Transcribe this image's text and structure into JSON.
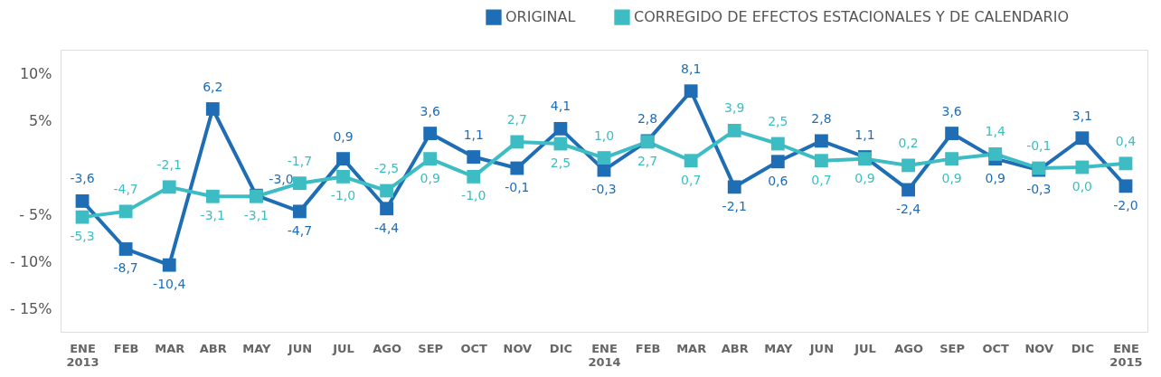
{
  "chart_data": {
    "type": "line",
    "categories": [
      "ENE\n2013",
      "FEB",
      "MAR",
      "ABR",
      "MAY",
      "JUN",
      "JUL",
      "AGO",
      "SEP",
      "OCT",
      "NOV",
      "DIC",
      "ENE\n2014",
      "FEB",
      "MAR",
      "ABR",
      "MAY",
      "JUN",
      "JUL",
      "AGO",
      "SEP",
      "OCT",
      "NOV",
      "DIC",
      "ENE\n2015"
    ],
    "series": [
      {
        "name": "ORIGINAL",
        "color": "#1f6db5",
        "values": [
          -3.6,
          -8.7,
          -10.4,
          6.2,
          -3.0,
          -4.7,
          0.9,
          -4.4,
          3.6,
          1.1,
          -0.1,
          4.1,
          -0.3,
          2.8,
          8.1,
          -2.1,
          0.6,
          2.8,
          1.1,
          -2.4,
          3.6,
          0.9,
          -0.3,
          3.1,
          -2.0
        ],
        "value_labels": [
          "-3,6",
          "-8,7",
          "-10,4",
          "6,2",
          "-3,0",
          "-4,7",
          "0,9",
          "-4,4",
          "3,6",
          "1,1",
          "-0,1",
          "4,1",
          "-0,3",
          "2,8",
          "8,1",
          "-2,1",
          "0,6",
          "2,8",
          "1,1",
          "-2,4",
          "3,6",
          "0,9",
          "-0,3",
          "3,1",
          "-2,0"
        ]
      },
      {
        "name": "CORREGIDO DE EFECTOS ESTACIONALES Y DE CALENDARIO",
        "color": "#3dbdc3",
        "values": [
          -5.3,
          -4.7,
          -2.1,
          -3.1,
          -3.1,
          -1.7,
          -1.0,
          -2.5,
          0.9,
          -1.0,
          2.7,
          2.5,
          1.0,
          2.7,
          0.7,
          3.9,
          2.5,
          0.7,
          0.9,
          0.2,
          0.9,
          1.4,
          -0.1,
          0.0,
          0.4
        ],
        "value_labels": [
          "-5,3",
          "-4,7",
          "-2,1",
          "-3,1",
          "-3,1",
          "-1,7",
          "-1,0",
          "-2,5",
          "0,9",
          "-1,0",
          "2,7",
          "2,5",
          "1,0",
          "2,7",
          "0,7",
          "3,9",
          "2,5",
          "0,7",
          "0,9",
          "0,2",
          "0,9",
          "1,4",
          "-0,1",
          "0,0",
          "0,4"
        ]
      }
    ],
    "ylim": [
      -17.5,
      12.5
    ],
    "yticks": [
      {
        "value": 10,
        "label": "10%"
      },
      {
        "value": 5,
        "label": "5%"
      },
      {
        "value": -5,
        "label": "- 5%"
      },
      {
        "value": -10,
        "label": "- 10%"
      },
      {
        "value": -15,
        "label": "- 15%"
      }
    ],
    "grid": false,
    "legend": "top right",
    "marker": "square",
    "line_style": "solid"
  }
}
